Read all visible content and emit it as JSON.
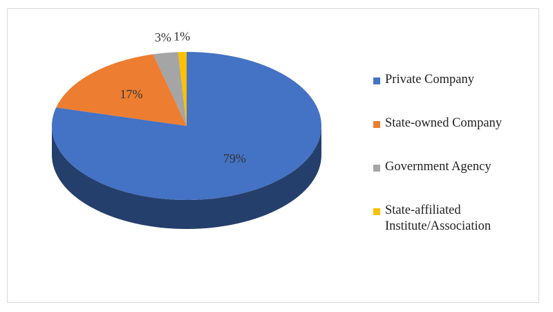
{
  "chart_data": {
    "type": "pie",
    "categories": [
      "Private Company",
      "State-owned Company",
      "Government Agency",
      "State-affiliated Institute/Association"
    ],
    "values": [
      79,
      17,
      3,
      1
    ],
    "value_labels": [
      "79%",
      "17%",
      "3%",
      "1%"
    ],
    "colors": [
      "#4472c4",
      "#ed7d31",
      "#a5a5a5",
      "#ffc000"
    ],
    "legend": "right"
  }
}
